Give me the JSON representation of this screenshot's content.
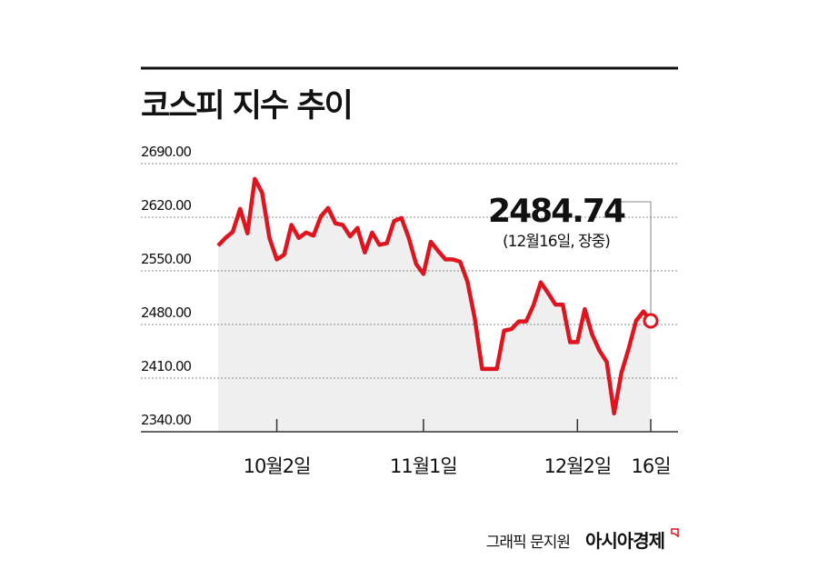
{
  "chart_data": {
    "type": "line",
    "title": "코스피 지수 추이",
    "categories": [
      null,
      null,
      null,
      null,
      null,
      null,
      null,
      null,
      "10월2일",
      null,
      null,
      null,
      null,
      null,
      null,
      null,
      null,
      null,
      null,
      null,
      null,
      null,
      null,
      null,
      null,
      null,
      null,
      null,
      "11월1일",
      null,
      null,
      null,
      null,
      null,
      null,
      null,
      null,
      null,
      null,
      null,
      null,
      null,
      null,
      null,
      null,
      null,
      null,
      null,
      null,
      "12월2일",
      null,
      null,
      null,
      null,
      null,
      null,
      null,
      null,
      null,
      "16일"
    ],
    "values": [
      2583,
      2593,
      2601,
      2631,
      2599,
      2670,
      2652,
      2593,
      2565,
      2571,
      2610,
      2593,
      2600,
      2596,
      2621,
      2632,
      2612,
      2610,
      2595,
      2606,
      2574,
      2600,
      2584,
      2586,
      2615,
      2619,
      2593,
      2559,
      2546,
      2588,
      2576,
      2565,
      2565,
      2562,
      2536,
      2488,
      2422,
      2422,
      2422,
      2472,
      2474,
      2484,
      2484,
      2505,
      2535,
      2521,
      2506,
      2506,
      2457,
      2457,
      2500,
      2467,
      2446,
      2431,
      2364,
      2417,
      2449,
      2485,
      2497,
      2484.74
    ],
    "annotation": "(12월16일, 장중)",
    "color": "#e0141e",
    "ylim": [
      2340,
      2690
    ],
    "yticks": [
      {
        "value": 2340,
        "label": "2340.00"
      },
      {
        "value": 2410,
        "label": "2410.00"
      },
      {
        "value": 2480,
        "label": "2480.00"
      },
      {
        "value": 2550,
        "label": "2550.00"
      },
      {
        "value": 2620,
        "label": "2620.00"
      },
      {
        "value": 2690,
        "label": "2690.00"
      }
    ],
    "grid": true,
    "credit": "그래픽 문지원",
    "brand": "아시아경제"
  }
}
